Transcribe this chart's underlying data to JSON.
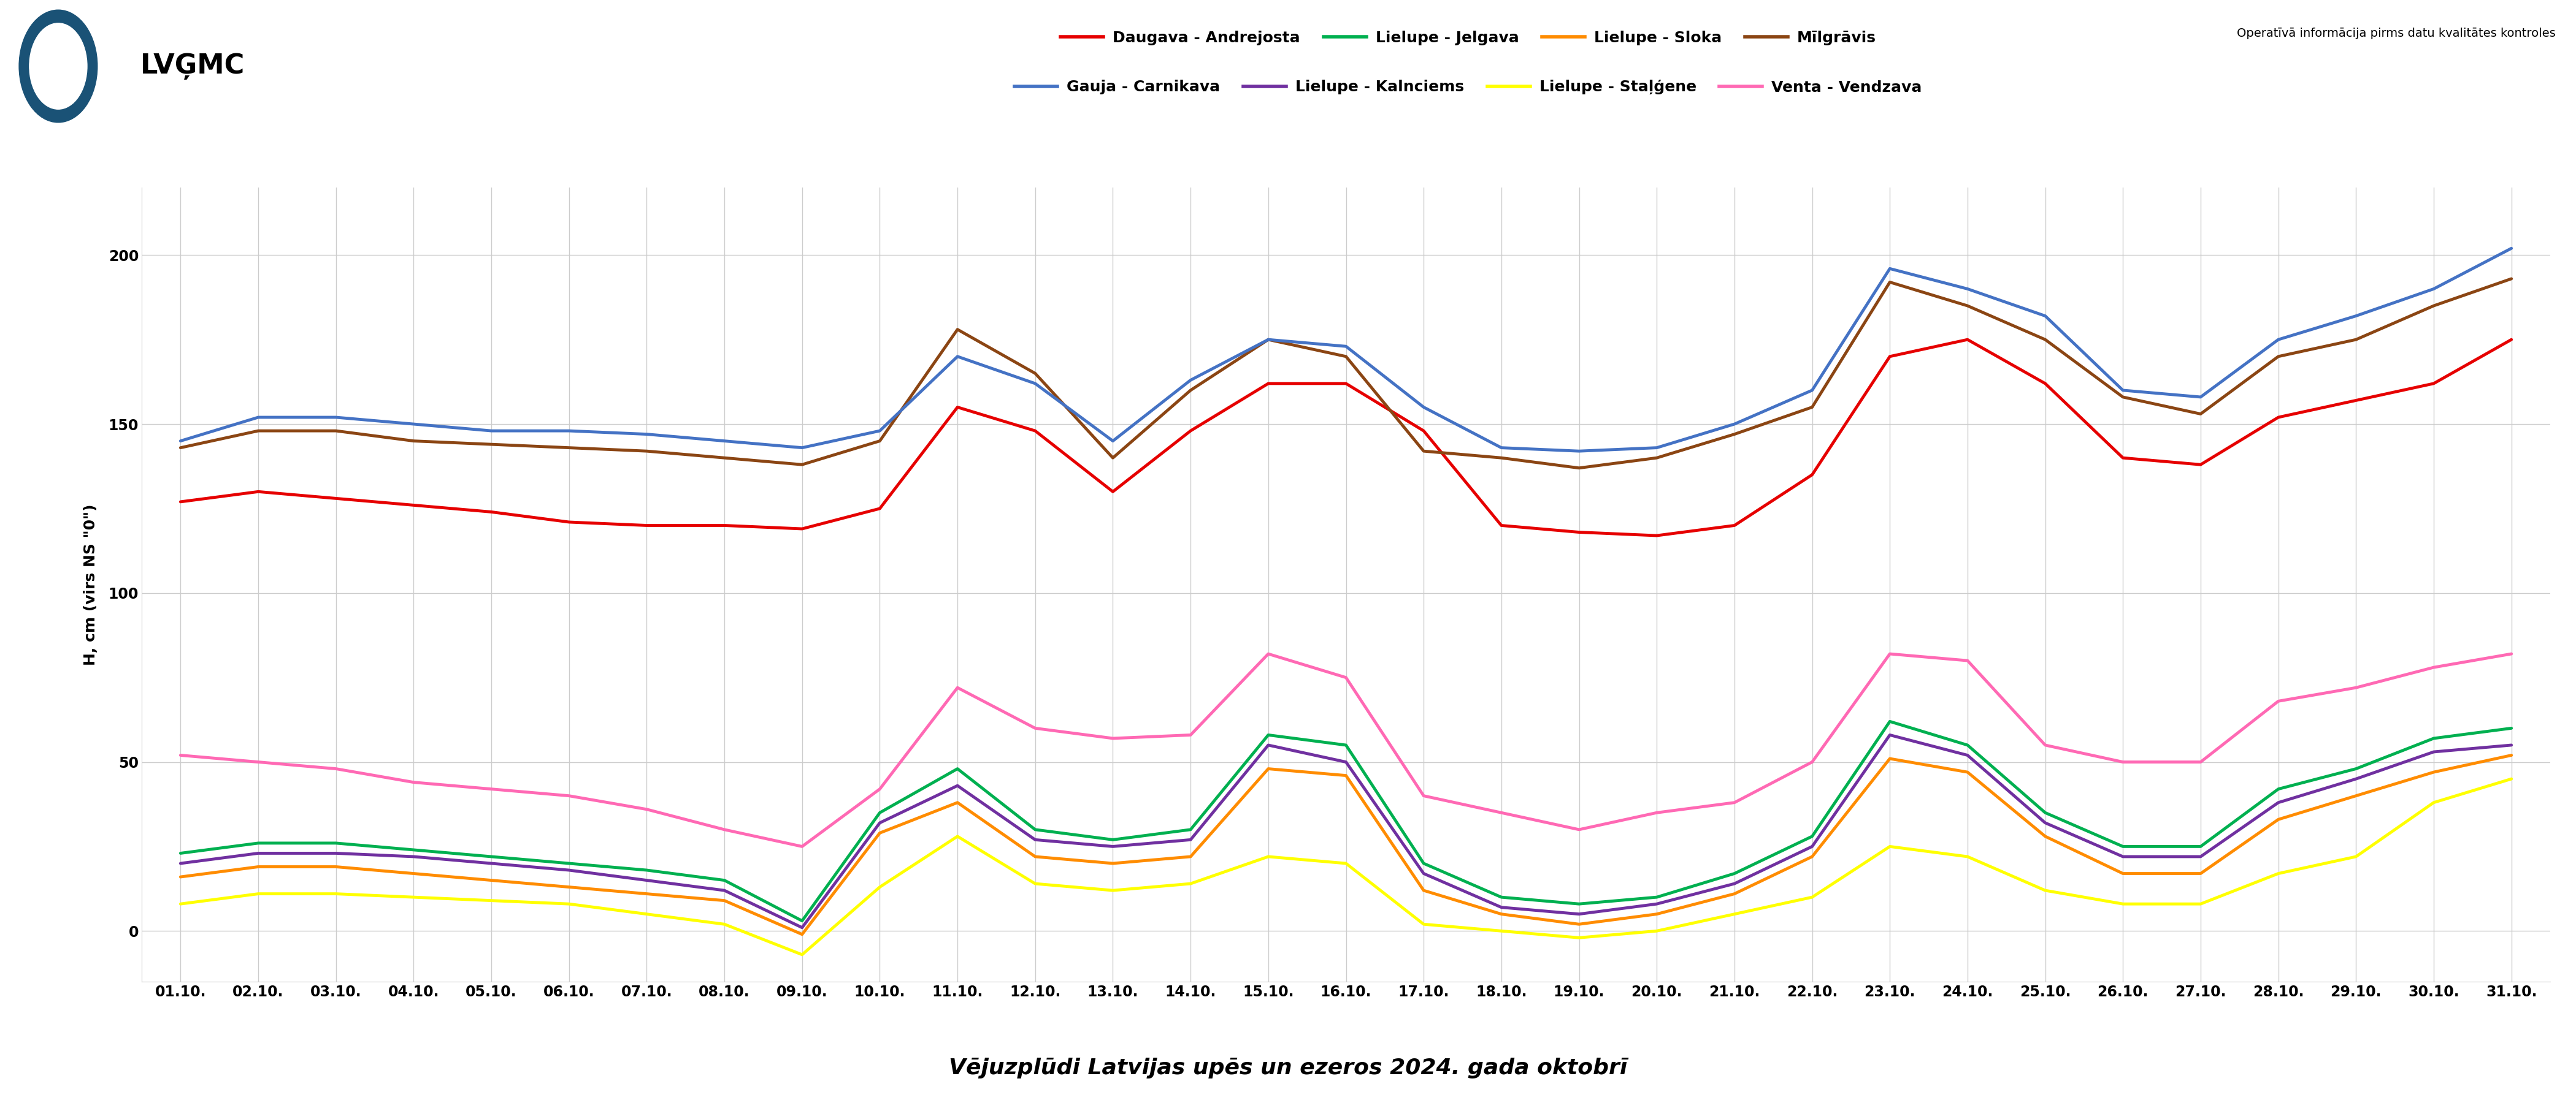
{
  "title": "Vējuzplūdi Latvijas upēs un ezeros 2024. gada oktobrī",
  "subtitle": "Operatīvā informācija pirms datu kvalitātes kontroles",
  "ylabel": "H, cm (virs NS \"0\")",
  "days": [
    "01.10.",
    "02.10.",
    "03.10.",
    "04.10.",
    "05.10.",
    "06.10.",
    "07.10.",
    "08.10.",
    "09.10.",
    "10.10.",
    "11.10.",
    "12.10.",
    "13.10.",
    "14.10.",
    "15.10.",
    "16.10.",
    "17.10.",
    "18.10.",
    "19.10.",
    "20.10.",
    "21.10.",
    "22.10.",
    "23.10.",
    "24.10.",
    "25.10.",
    "26.10.",
    "27.10.",
    "28.10.",
    "29.10.",
    "30.10.",
    "31.10."
  ],
  "series": {
    "Daugava - Andrejosta": {
      "color": "#e60000",
      "values": [
        127,
        130,
        128,
        126,
        124,
        121,
        120,
        120,
        119,
        125,
        155,
        148,
        130,
        148,
        162,
        162,
        148,
        120,
        118,
        117,
        120,
        135,
        170,
        175,
        162,
        140,
        138,
        152,
        157,
        162,
        175
      ]
    },
    "Gauja - Carnikava": {
      "color": "#4472c4",
      "values": [
        145,
        152,
        152,
        150,
        148,
        148,
        147,
        145,
        143,
        148,
        170,
        162,
        145,
        163,
        175,
        173,
        155,
        143,
        142,
        143,
        150,
        160,
        196,
        190,
        182,
        160,
        158,
        175,
        182,
        190,
        202
      ]
    },
    "Lielupe - Jelgava": {
      "color": "#00b050",
      "values": [
        23,
        26,
        26,
        24,
        22,
        20,
        18,
        15,
        3,
        35,
        48,
        30,
        27,
        30,
        58,
        55,
        20,
        10,
        8,
        10,
        17,
        28,
        62,
        55,
        35,
        25,
        25,
        42,
        48,
        57,
        60
      ]
    },
    "Lielupe - Kalnciems": {
      "color": "#7030a0",
      "values": [
        20,
        23,
        23,
        22,
        20,
        18,
        15,
        12,
        1,
        32,
        43,
        27,
        25,
        27,
        55,
        50,
        17,
        7,
        5,
        8,
        14,
        25,
        58,
        52,
        32,
        22,
        22,
        38,
        45,
        53,
        55
      ]
    },
    "Lielupe - Sloka": {
      "color": "#ff8c00",
      "values": [
        16,
        19,
        19,
        17,
        15,
        13,
        11,
        9,
        -1,
        29,
        38,
        22,
        20,
        22,
        48,
        46,
        12,
        5,
        2,
        5,
        11,
        22,
        51,
        47,
        28,
        17,
        17,
        33,
        40,
        47,
        52
      ]
    },
    "Lielupe - Staļģene": {
      "color": "#ffff00",
      "values": [
        8,
        11,
        11,
        10,
        9,
        8,
        5,
        2,
        -7,
        13,
        28,
        14,
        12,
        14,
        22,
        20,
        2,
        0,
        -2,
        0,
        5,
        10,
        25,
        22,
        12,
        8,
        8,
        17,
        22,
        38,
        45
      ]
    },
    "Mīlgrāvis": {
      "color": "#8b4513",
      "values": [
        143,
        148,
        148,
        145,
        144,
        143,
        142,
        140,
        138,
        145,
        178,
        165,
        140,
        160,
        175,
        170,
        142,
        140,
        137,
        140,
        147,
        155,
        192,
        185,
        175,
        158,
        153,
        170,
        175,
        185,
        193
      ]
    },
    "Venta - Vendzava": {
      "color": "#ff69b4",
      "values": [
        52,
        50,
        48,
        44,
        42,
        40,
        36,
        30,
        25,
        42,
        72,
        60,
        57,
        58,
        82,
        75,
        40,
        35,
        30,
        35,
        38,
        50,
        82,
        80,
        55,
        50,
        50,
        68,
        72,
        78,
        82
      ]
    }
  },
  "legend_row1": [
    "Daugava - Andrejosta",
    "Lielupe - Jelgava",
    "Lielupe - Sloka",
    "Mīlgrāvis"
  ],
  "legend_row2": [
    "Gauja - Carnikava",
    "Lielupe - Kalnciems",
    "Lielupe - Staļģene",
    "Venta - Vendzava"
  ],
  "ylim": [
    -15,
    220
  ],
  "yticks": [
    0,
    50,
    100,
    150,
    200
  ],
  "background_color": "#ffffff",
  "grid_color": "#cccccc",
  "title_fontsize": 26,
  "subtitle_fontsize": 14,
  "ylabel_fontsize": 18,
  "tick_fontsize": 17,
  "legend_fontsize": 18,
  "linewidth": 3.5
}
